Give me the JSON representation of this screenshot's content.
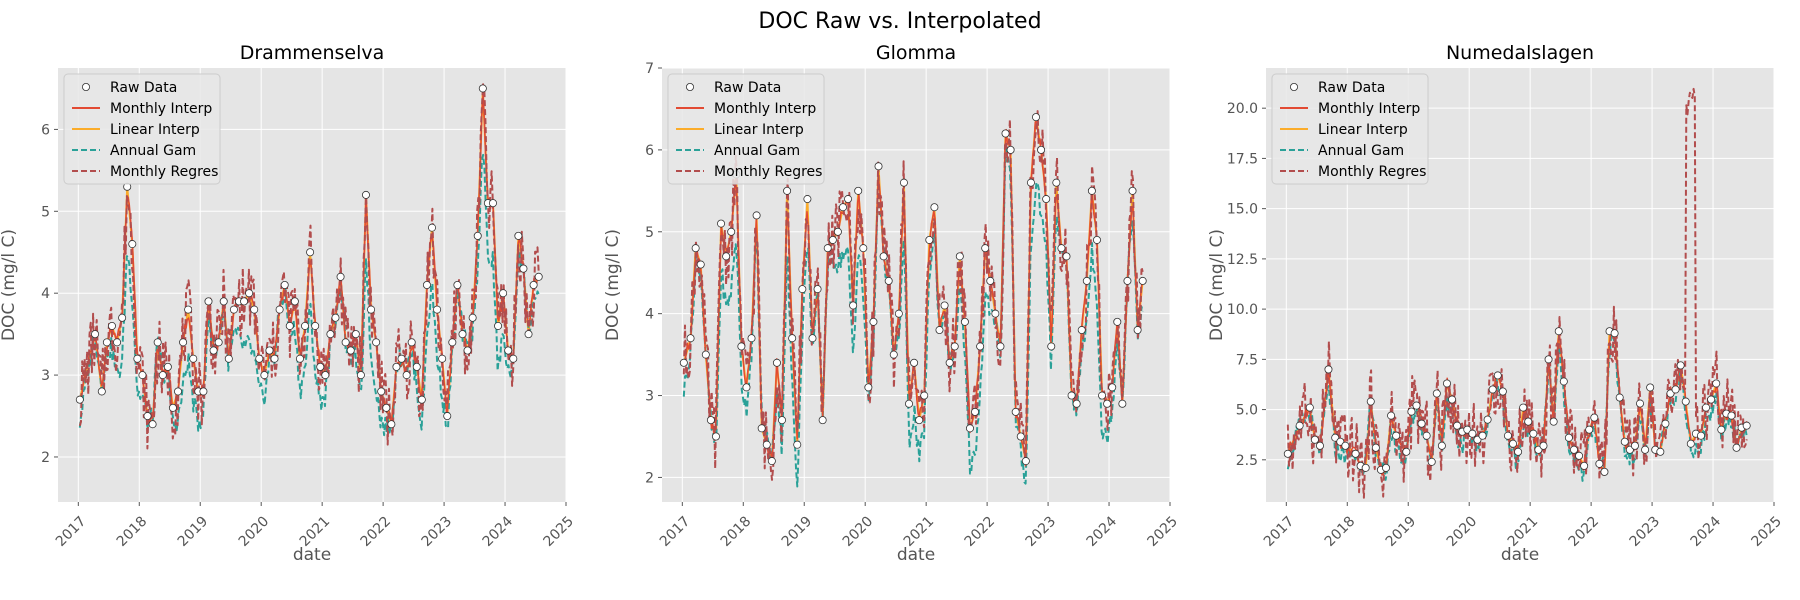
{
  "figure": {
    "title": "DOC Raw vs. Interpolated"
  },
  "legend_labels": [
    "Raw Data",
    "Monthly Interp",
    "Linear Interp",
    "Annual Gam",
    "Monthly Regres"
  ],
  "colors": {
    "axes_bg": "#e5e5e5",
    "grid": "#ffffff",
    "raw_face": "#ffffff",
    "raw_edge": "#333333",
    "monthly_interp": "#e24a33",
    "linear_interp": "#fbac2a",
    "annual_gam": "#2aa198",
    "monthly_regres": "#b24d4d"
  },
  "chart_data": [
    {
      "type": "line",
      "title": "Drammenselva",
      "xlabel": "date",
      "ylabel": "DOC (mg/l C)",
      "xlim": [
        "2016-09-01",
        "2025-01-01"
      ],
      "ylim": [
        1.45,
        6.75
      ],
      "xticks": [
        "2017",
        "2018",
        "2019",
        "2020",
        "2021",
        "2022",
        "2023",
        "2024",
        "2025"
      ],
      "yticks": [
        2,
        3,
        4,
        5,
        6
      ],
      "grid": true,
      "legend_position": "upper-left",
      "raw": {
        "x": [
          "2017-01-10",
          "2017-04-10",
          "2017-05-20",
          "2017-06-20",
          "2017-07-20",
          "2017-08-20",
          "2017-09-20",
          "2017-10-20",
          "2017-11-20",
          "2017-12-20",
          "2018-01-20",
          "2018-02-20",
          "2018-03-20",
          "2018-04-20",
          "2018-05-20",
          "2018-06-20",
          "2018-07-20",
          "2018-08-20",
          "2018-09-20",
          "2018-10-20",
          "2018-11-20",
          "2018-12-20",
          "2019-01-20",
          "2019-02-20",
          "2019-03-20",
          "2019-04-20",
          "2019-05-20",
          "2019-06-20",
          "2019-07-20",
          "2019-08-20",
          "2019-09-20",
          "2019-10-20",
          "2019-11-20",
          "2019-12-20",
          "2020-01-20",
          "2020-02-20",
          "2020-03-20",
          "2020-04-20",
          "2020-05-20",
          "2020-06-20",
          "2020-07-20",
          "2020-08-20",
          "2020-09-20",
          "2020-10-20",
          "2020-11-20",
          "2020-12-20",
          "2021-01-20",
          "2021-02-20",
          "2021-03-20",
          "2021-04-20",
          "2021-05-20",
          "2021-06-20",
          "2021-07-20",
          "2021-08-20",
          "2021-09-20",
          "2021-10-20",
          "2021-11-20",
          "2021-12-20",
          "2022-01-20",
          "2022-02-20",
          "2022-03-20",
          "2022-04-20",
          "2022-05-20",
          "2022-06-20",
          "2022-07-20",
          "2022-08-20",
          "2022-09-20",
          "2022-10-20",
          "2022-11-20",
          "2022-12-20",
          "2023-01-20",
          "2023-02-20",
          "2023-03-20",
          "2023-04-20",
          "2023-05-20",
          "2023-06-20",
          "2023-07-20",
          "2023-08-20",
          "2023-09-20",
          "2023-10-20",
          "2023-11-20",
          "2023-12-20",
          "2024-01-20",
          "2024-02-20",
          "2024-03-20",
          "2024-04-20",
          "2024-05-20",
          "2024-06-20",
          "2024-07-20"
        ],
        "y": [
          2.7,
          3.5,
          2.8,
          3.4,
          3.6,
          3.4,
          3.7,
          5.3,
          4.6,
          3.2,
          3.0,
          2.5,
          2.4,
          3.4,
          3.0,
          3.1,
          2.6,
          2.8,
          3.4,
          3.8,
          3.2,
          2.8,
          2.8,
          3.9,
          3.3,
          3.4,
          3.9,
          3.2,
          3.8,
          3.9,
          3.9,
          4.0,
          3.8,
          3.2,
          3.0,
          3.3,
          3.2,
          3.8,
          4.1,
          3.6,
          3.9,
          3.2,
          3.6,
          4.5,
          3.6,
          3.1,
          3.0,
          3.5,
          3.7,
          4.2,
          3.4,
          3.3,
          3.5,
          3.0,
          5.2,
          3.8,
          3.4,
          2.8,
          2.6,
          2.4,
          3.1,
          3.2,
          3.0,
          3.4,
          3.1,
          2.7,
          4.1,
          4.8,
          3.8,
          3.2,
          2.5,
          3.4,
          4.1,
          3.5,
          3.3,
          3.7,
          4.7,
          6.5,
          5.1,
          5.1,
          3.6,
          4.0,
          3.3,
          3.2,
          4.7,
          4.3,
          3.5,
          4.1,
          4.2
        ]
      }
    },
    {
      "type": "line",
      "title": "Glomma",
      "xlabel": "date",
      "ylabel": "DOC (mg/l C)",
      "xlim": [
        "2016-09-01",
        "2025-01-01"
      ],
      "ylim": [
        1.7,
        7.0
      ],
      "xticks": [
        "2017",
        "2018",
        "2019",
        "2020",
        "2021",
        "2022",
        "2023",
        "2024",
        "2025"
      ],
      "yticks": [
        2,
        3,
        4,
        5,
        6,
        7
      ],
      "grid": true,
      "legend_position": "upper-left",
      "raw": {
        "x": [
          "2017-01-10",
          "2017-02-20",
          "2017-03-20",
          "2017-04-20",
          "2017-05-20",
          "2017-06-20",
          "2017-07-20",
          "2017-08-20",
          "2017-09-20",
          "2017-10-20",
          "2017-11-20",
          "2017-12-20",
          "2018-01-20",
          "2018-02-20",
          "2018-03-20",
          "2018-04-20",
          "2018-05-20",
          "2018-06-20",
          "2018-07-20",
          "2018-08-20",
          "2018-09-20",
          "2018-10-20",
          "2018-11-20",
          "2018-12-20",
          "2019-01-20",
          "2019-02-20",
          "2019-03-20",
          "2019-04-20",
          "2019-05-20",
          "2019-06-20",
          "2019-07-20",
          "2019-08-20",
          "2019-09-20",
          "2019-10-20",
          "2019-11-20",
          "2019-12-20",
          "2020-01-20",
          "2020-02-20",
          "2020-03-20",
          "2020-04-20",
          "2020-05-20",
          "2020-06-20",
          "2020-07-20",
          "2020-08-20",
          "2020-09-20",
          "2020-10-20",
          "2020-11-20",
          "2020-12-20",
          "2021-01-20",
          "2021-02-20",
          "2021-03-20",
          "2021-04-20",
          "2021-05-20",
          "2021-06-20",
          "2021-07-20",
          "2021-08-20",
          "2021-09-20",
          "2021-10-20",
          "2021-11-20",
          "2021-12-20",
          "2022-01-20",
          "2022-02-20",
          "2022-03-20",
          "2022-04-20",
          "2022-05-20",
          "2022-06-20",
          "2022-07-20",
          "2022-08-20",
          "2022-09-20",
          "2022-10-20",
          "2022-11-20",
          "2022-12-20",
          "2023-01-20",
          "2023-02-20",
          "2023-03-20",
          "2023-04-20",
          "2023-05-20",
          "2023-06-20",
          "2023-07-20",
          "2023-08-20",
          "2023-09-20",
          "2023-10-20",
          "2023-11-20",
          "2023-12-20",
          "2024-01-20",
          "2024-02-20",
          "2024-03-20",
          "2024-04-20",
          "2024-05-20",
          "2024-06-20",
          "2024-07-20"
        ],
        "y": [
          3.4,
          3.7,
          4.8,
          4.6,
          3.5,
          2.7,
          2.5,
          5.1,
          4.7,
          5.0,
          5.7,
          3.6,
          3.1,
          3.7,
          5.2,
          2.6,
          2.4,
          2.2,
          3.4,
          2.7,
          5.5,
          3.7,
          2.4,
          4.3,
          5.4,
          3.7,
          4.3,
          2.7,
          4.8,
          4.9,
          5.0,
          5.3,
          5.4,
          4.1,
          5.5,
          4.8,
          3.1,
          3.9,
          5.8,
          4.7,
          4.4,
          3.5,
          4.0,
          5.6,
          2.9,
          3.4,
          2.7,
          3.0,
          4.9,
          5.3,
          3.8,
          4.1,
          3.4,
          3.6,
          4.7,
          3.9,
          2.6,
          2.8,
          3.6,
          4.8,
          4.4,
          4.0,
          3.6,
          6.2,
          6.0,
          2.8,
          2.5,
          2.2,
          5.6,
          6.4,
          6.0,
          5.4,
          3.6,
          5.6,
          4.8,
          4.7,
          3.0,
          2.9,
          3.8,
          4.4,
          5.5,
          4.9,
          3.0,
          2.9,
          3.1,
          3.9,
          2.9,
          4.4,
          5.5,
          3.8,
          4.4
        ]
      }
    },
    {
      "type": "line",
      "title": "Numedalslagen",
      "xlabel": "date",
      "ylabel": "DOC (mg/l C)",
      "xlim": [
        "2016-09-01",
        "2025-01-01"
      ],
      "ylim": [
        0.4,
        22.0
      ],
      "xticks": [
        "2017",
        "2018",
        "2019",
        "2020",
        "2021",
        "2022",
        "2023",
        "2024",
        "2025"
      ],
      "yticks": [
        2.5,
        5.0,
        7.5,
        10.0,
        12.5,
        15.0,
        17.5,
        20.0
      ],
      "grid": true,
      "legend_position": "upper-left",
      "raw": {
        "x": [
          "2017-01-10",
          "2017-03-20",
          "2017-05-20",
          "2017-06-20",
          "2017-07-20",
          "2017-09-10",
          "2017-10-20",
          "2017-11-20",
          "2017-12-20",
          "2018-02-20",
          "2018-03-20",
          "2018-04-20",
          "2018-05-20",
          "2018-06-20",
          "2018-07-20",
          "2018-08-20",
          "2018-09-20",
          "2018-10-20",
          "2018-12-20",
          "2019-01-20",
          "2019-02-20",
          "2019-03-20",
          "2019-04-20",
          "2019-05-20",
          "2019-06-20",
          "2019-07-20",
          "2019-08-20",
          "2019-09-20",
          "2019-10-20",
          "2019-11-20",
          "2019-12-20",
          "2020-01-20",
          "2020-02-20",
          "2020-03-20",
          "2020-04-20",
          "2020-05-20",
          "2020-06-20",
          "2020-07-20",
          "2020-08-20",
          "2020-09-20",
          "2020-10-20",
          "2020-11-20",
          "2020-12-20",
          "2021-01-20",
          "2021-02-20",
          "2021-03-20",
          "2021-04-20",
          "2021-05-20",
          "2021-06-20",
          "2021-07-20",
          "2021-08-20",
          "2021-09-20",
          "2021-10-20",
          "2021-11-20",
          "2021-12-20",
          "2022-01-20",
          "2022-02-20",
          "2022-03-20",
          "2022-04-20",
          "2022-05-20",
          "2022-06-20",
          "2022-07-20",
          "2022-08-20",
          "2022-09-20",
          "2022-10-20",
          "2022-11-20",
          "2022-12-20",
          "2023-01-20",
          "2023-02-20",
          "2023-03-20",
          "2023-04-20",
          "2023-05-20",
          "2023-06-20",
          "2023-07-20",
          "2023-08-20",
          "2023-09-20",
          "2023-10-20",
          "2023-11-20",
          "2023-12-20",
          "2024-01-20",
          "2024-02-20",
          "2024-03-20",
          "2024-04-20",
          "2024-05-20",
          "2024-06-20",
          "2024-07-20"
        ],
        "y": [
          2.8,
          4.2,
          5.1,
          3.5,
          3.2,
          7.0,
          3.6,
          3.4,
          3.2,
          2.8,
          2.2,
          2.1,
          5.4,
          3.1,
          2.0,
          2.1,
          4.7,
          3.7,
          2.9,
          4.9,
          5.2,
          4.3,
          3.7,
          2.4,
          5.8,
          3.2,
          6.3,
          5.5,
          4.2,
          3.9,
          4.0,
          3.8,
          3.5,
          3.7,
          4.5,
          6.0,
          6.7,
          5.9,
          3.7,
          3.3,
          2.9,
          5.1,
          4.4,
          3.8,
          3.0,
          3.2,
          7.5,
          4.4,
          8.9,
          6.4,
          3.6,
          3.0,
          2.7,
          2.2,
          4.0,
          4.6,
          2.3,
          1.9,
          8.9,
          8.8,
          5.6,
          3.4,
          3.0,
          3.2,
          5.3,
          3.0,
          6.1,
          3.0,
          2.9,
          4.3,
          5.8,
          6.0,
          7.2,
          5.4,
          3.3,
          3.8,
          3.7,
          5.1,
          5.5,
          6.3,
          4.0,
          4.8,
          4.7,
          3.1,
          4.1,
          4.2
        ]
      }
    }
  ]
}
